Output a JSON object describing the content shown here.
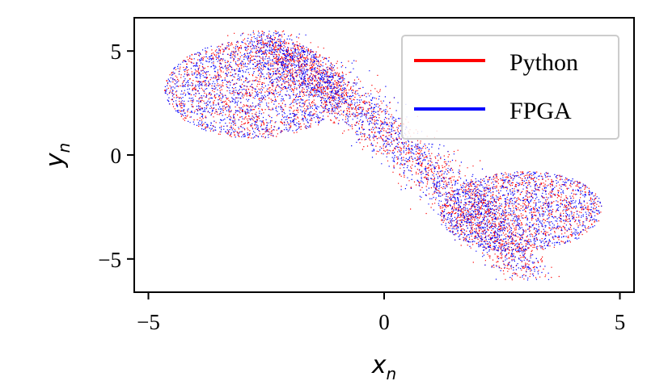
{
  "chart_data": {
    "type": "scatter",
    "title": "",
    "xlabel": "x",
    "xlabel_sub": "n",
    "ylabel": "y",
    "ylabel_sub": "n",
    "xlim": [
      -5.3,
      5.3
    ],
    "ylim": [
      -6.6,
      6.6
    ],
    "xticks": [
      -5,
      0,
      5
    ],
    "xtick_labels": [
      "−5",
      "0",
      "5"
    ],
    "yticks": [
      -5,
      0,
      5
    ],
    "ytick_labels": [
      "−5",
      "0",
      "5"
    ],
    "grid": false,
    "legend_position": "top-right",
    "series": [
      {
        "name": "Python",
        "color": "#ff0000",
        "description_points": "dense chaotic attractor; left lobe centered near (-2.7, 3.0), right lobe centered near (2.7, -2.8), connected by a diagonal band through the origin",
        "x_range": [
          -4.7,
          4.6
        ],
        "y_range": [
          -6.0,
          6.0
        ]
      },
      {
        "name": "FPGA",
        "color": "#0000ff",
        "x_range": [
          -4.7,
          4.6
        ],
        "y_range": [
          -6.0,
          6.0
        ]
      }
    ]
  }
}
